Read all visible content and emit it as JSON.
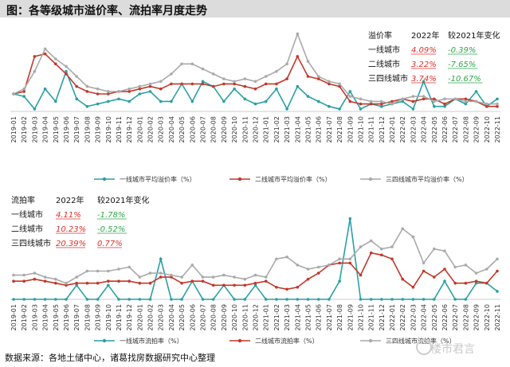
{
  "header": {
    "title": "图：各等级城市溢价率、流拍率月度走势"
  },
  "footer": {
    "source": "数据来源：各地土储中心，诸葛找房数据研究中心整理"
  },
  "watermark": {
    "text": "楼市君言"
  },
  "colors": {
    "tier1": "#2aa0a4",
    "tier2": "#c0392b",
    "tier3": "#aaaaaa",
    "red_text": "#e0302a",
    "green_text": "#2ea84a",
    "axis": "#cccccc",
    "title_bg": "#dcdcdc"
  },
  "chart_data": [
    {
      "type": "line",
      "title": "溢价率",
      "ylim": [
        0,
        35
      ],
      "categories": [
        "2019-01",
        "2019-02",
        "2019-03",
        "2019-04",
        "2019-05",
        "2019-06",
        "2019-07",
        "2019-08",
        "2019-09",
        "2019-10",
        "2019-11",
        "2019-12",
        "2020-01",
        "2020-02",
        "2020-03",
        "2020-04",
        "2020-05",
        "2020-06",
        "2020-07",
        "2020-08",
        "2020-09",
        "2020-10",
        "2020-11",
        "2020-12",
        "2021-01",
        "2021-02",
        "2021-03",
        "2021-04",
        "2021-05",
        "2021-06",
        "2021-07",
        "2021-08",
        "2021-09",
        "2021-10",
        "2021-11",
        "2021-12",
        "2022-01",
        "2022-02",
        "2022-03",
        "2022-04",
        "2022-05",
        "2022-06",
        "2022-07",
        "2022-08",
        "2022-09",
        "2022-10",
        "2022-11"
      ],
      "series": [
        {
          "name": "一线城市平均溢价率（%）",
          "color_key": "tier1",
          "values": [
            7,
            6,
            1,
            9,
            4,
            16,
            5,
            2,
            3,
            4,
            5,
            4,
            7,
            8,
            4,
            4,
            11,
            4,
            12,
            10,
            4,
            9,
            5,
            3,
            4,
            9,
            1,
            10,
            6,
            4,
            2,
            1,
            8,
            1,
            3,
            2,
            3,
            4,
            1,
            12,
            2,
            2,
            5,
            3,
            8,
            2,
            5
          ]
        },
        {
          "name": "二线城市平均溢价率（%）",
          "color_key": "tier2",
          "values": [
            7,
            8,
            22,
            23,
            19,
            15,
            10,
            8,
            7,
            7,
            8,
            8,
            9,
            10,
            9,
            11,
            11,
            11,
            11,
            10,
            11,
            11,
            10,
            9,
            11,
            11,
            13,
            22,
            14,
            13,
            11,
            10,
            4,
            3,
            3,
            3,
            4,
            5,
            4,
            5,
            5,
            3,
            5,
            5,
            4,
            2,
            2
          ]
        },
        {
          "name": "三四线城市平均溢价率（%）",
          "color_key": "tier3",
          "values": [
            7,
            9,
            16,
            25,
            21,
            18,
            14,
            10,
            9,
            8,
            8,
            9,
            10,
            11,
            12,
            15,
            19,
            19,
            17,
            15,
            13,
            12,
            13,
            12,
            14,
            16,
            19,
            31,
            20,
            14,
            12,
            11,
            6,
            5,
            4,
            4,
            3,
            5,
            6,
            6,
            4,
            5,
            5,
            4,
            4,
            3,
            3
          ]
        }
      ],
      "legend_position": "bottom"
    },
    {
      "type": "line",
      "title": "流拍率",
      "ylim": [
        0,
        45
      ],
      "categories": [
        "2019-01",
        "2019-02",
        "2019-03",
        "2019-04",
        "2019-05",
        "2019-06",
        "2019-07",
        "2019-08",
        "2019-09",
        "2019-10",
        "2019-11",
        "2019-12",
        "2020-01",
        "2020-02",
        "2020-03",
        "2020-04",
        "2020-05",
        "2020-06",
        "2020-07",
        "2020-08",
        "2020-09",
        "2020-10",
        "2020-11",
        "2020-12",
        "2021-01",
        "2021-02",
        "2021-03",
        "2021-04",
        "2021-05",
        "2021-06",
        "2021-07",
        "2021-08",
        "2021-09",
        "2021-10",
        "2021-11",
        "2021-12",
        "2022-01",
        "2022-02",
        "2022-03",
        "2022-04",
        "2022-05",
        "2022-06",
        "2022-07",
        "2022-08",
        "2022-09",
        "2022-10",
        "2022-11"
      ],
      "series": [
        {
          "name": "一线城市流拍率（%）",
          "color_key": "tier1",
          "values": [
            0,
            0,
            0,
            0,
            0,
            0,
            7,
            0,
            0,
            7,
            0,
            0,
            0,
            0,
            20,
            0,
            0,
            9,
            0,
            0,
            7,
            0,
            0,
            7,
            0,
            0,
            0,
            0,
            0,
            0,
            0,
            9,
            40,
            0,
            0,
            0,
            0,
            0,
            0,
            0,
            0,
            9,
            0,
            0,
            8,
            8,
            4
          ]
        },
        {
          "name": "二线城市流拍率（%）",
          "color_key": "tier2",
          "values": [
            9,
            9,
            10,
            9,
            8,
            7,
            8,
            8,
            8,
            9,
            9,
            9,
            8,
            8,
            11,
            11,
            8,
            9,
            9,
            7,
            7,
            7,
            7,
            8,
            9,
            6,
            5,
            6,
            10,
            13,
            17,
            18,
            18,
            12,
            23,
            22,
            20,
            10,
            6,
            14,
            11,
            15,
            8,
            8,
            9,
            8,
            14
          ]
        },
        {
          "name": "三四线城市流拍率（%）",
          "color_key": "tier3",
          "values": [
            12,
            12,
            13,
            11,
            10,
            8,
            11,
            14,
            14,
            14,
            15,
            16,
            11,
            13,
            13,
            12,
            11,
            17,
            11,
            11,
            12,
            11,
            10,
            12,
            11,
            20,
            21,
            17,
            15,
            16,
            17,
            20,
            20,
            26,
            29,
            25,
            26,
            35,
            31,
            18,
            25,
            24,
            16,
            17,
            13,
            15,
            20
          ]
        }
      ],
      "legend_position": "bottom"
    }
  ],
  "table_premium": {
    "headers": [
      "溢价率",
      "2022年",
      "较2021年变化"
    ],
    "rows": [
      {
        "label": "一线城市",
        "value": "4.09%",
        "change": "-0.39%"
      },
      {
        "label": "二线城市",
        "value": "3.22%",
        "change": "-7.65%"
      },
      {
        "label": "三四线城市",
        "value": "3.74%",
        "change": "-10.67%"
      }
    ]
  },
  "table_failure": {
    "headers": [
      "流拍率",
      "2022年",
      "较2021年变化"
    ],
    "rows": [
      {
        "label": "一线城市",
        "value": "4.11%",
        "change": "-1.78%"
      },
      {
        "label": "二线城市",
        "value": "10.23%",
        "change": "-0.52%"
      },
      {
        "label": "三四线城市",
        "value": "20.39%",
        "change": "0.77%"
      }
    ]
  }
}
